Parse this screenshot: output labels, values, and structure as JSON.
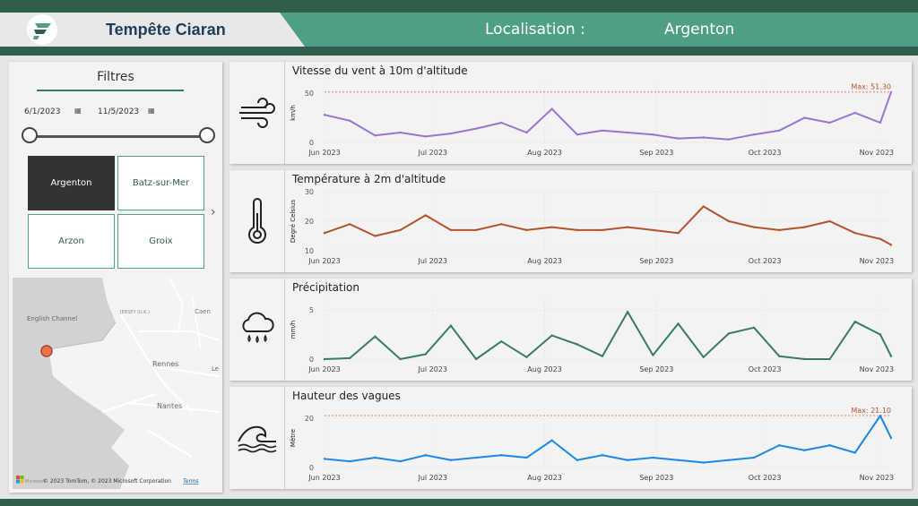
{
  "header": {
    "title": "Tempête Ciaran",
    "location_label": "Localisation :",
    "location_value": "Argenton"
  },
  "filters": {
    "title": "Filtres",
    "start_date": "6/1/2023",
    "end_date": "11/5/2023",
    "slider_range": [
      0,
      1
    ],
    "tiles": [
      "Argenton",
      "Batz-sur-Mer",
      "Arzon",
      "Groix"
    ],
    "selected_tile": "Argenton"
  },
  "map": {
    "labels": [
      "English Channel",
      "JERSEY (U.K.)",
      "Caen",
      "Rennes",
      "Le",
      "Nantes"
    ],
    "attribution": "© 2023 TomTom, © 2023 Microsoft Corporation",
    "terms": "Terms",
    "brand": "Microsoft"
  },
  "chart_data": [
    {
      "type": "line",
      "title": "Vitesse du vent à 10m d'altitude",
      "ylabel": "km/h",
      "ylim": [
        0,
        60
      ],
      "yticks": [
        0,
        50
      ],
      "xticks": [
        "Jun 2023",
        "Jul 2023",
        "Aug 2023",
        "Sep 2023",
        "Oct 2023",
        "Nov 2023"
      ],
      "color": "#9a74d1",
      "max_label": "Max: 51.30",
      "max_value": 51.3,
      "x": [
        "2023-06-01",
        "2023-06-08",
        "2023-06-15",
        "2023-06-22",
        "2023-06-29",
        "2023-07-06",
        "2023-07-13",
        "2023-07-20",
        "2023-07-27",
        "2023-08-03",
        "2023-08-10",
        "2023-08-17",
        "2023-08-24",
        "2023-08-31",
        "2023-09-07",
        "2023-09-14",
        "2023-09-21",
        "2023-09-28",
        "2023-10-05",
        "2023-10-12",
        "2023-10-19",
        "2023-10-26",
        "2023-11-02",
        "2023-11-05"
      ],
      "values": [
        28,
        22,
        7,
        10,
        6,
        9,
        14,
        20,
        10,
        34,
        8,
        12,
        10,
        8,
        4,
        5,
        3,
        8,
        12,
        25,
        20,
        30,
        20,
        51
      ]
    },
    {
      "type": "line",
      "title": "Température à 2m d'altitude",
      "ylabel": "Degré Celsius",
      "ylim": [
        10,
        30
      ],
      "yticks": [
        10,
        20,
        30
      ],
      "xticks": [
        "Jun 2023",
        "Jul 2023",
        "Aug 2023",
        "Sep 2023",
        "Oct 2023",
        "Nov 2023"
      ],
      "color": "#b4532a",
      "x": [
        "2023-06-01",
        "2023-06-08",
        "2023-06-15",
        "2023-06-22",
        "2023-06-29",
        "2023-07-06",
        "2023-07-13",
        "2023-07-20",
        "2023-07-27",
        "2023-08-03",
        "2023-08-10",
        "2023-08-17",
        "2023-08-24",
        "2023-08-31",
        "2023-09-07",
        "2023-09-14",
        "2023-09-21",
        "2023-09-28",
        "2023-10-05",
        "2023-10-12",
        "2023-10-19",
        "2023-10-26",
        "2023-11-02",
        "2023-11-05"
      ],
      "values": [
        16,
        19,
        15,
        17,
        22,
        17,
        17,
        19,
        17,
        18,
        17,
        17,
        18,
        17,
        16,
        25,
        20,
        18,
        17,
        18,
        20,
        16,
        14,
        12
      ]
    },
    {
      "type": "line",
      "title": "Précipitation",
      "ylabel": "mm/h",
      "ylim": [
        0,
        6
      ],
      "yticks": [
        0,
        5
      ],
      "xticks": [
        "Jun 2023",
        "Jul 2023",
        "Aug 2023",
        "Sep 2023",
        "Oct 2023",
        "Nov 2023"
      ],
      "color": "#3a7a63",
      "x": [
        "2023-06-01",
        "2023-06-08",
        "2023-06-15",
        "2023-06-22",
        "2023-06-29",
        "2023-07-06",
        "2023-07-13",
        "2023-07-20",
        "2023-07-27",
        "2023-08-03",
        "2023-08-10",
        "2023-08-17",
        "2023-08-24",
        "2023-08-31",
        "2023-09-07",
        "2023-09-14",
        "2023-09-21",
        "2023-09-28",
        "2023-10-05",
        "2023-10-12",
        "2023-10-19",
        "2023-10-26",
        "2023-11-02",
        "2023-11-05"
      ],
      "values": [
        0,
        0.1,
        2.3,
        0,
        0.5,
        3.4,
        0,
        1.8,
        0.2,
        2.4,
        1.5,
        0.3,
        4.8,
        0.4,
        3.6,
        0.2,
        2.6,
        3.2,
        0.3,
        0,
        0,
        3.8,
        2.5,
        0.3
      ]
    },
    {
      "type": "line",
      "title": "Hauteur des vagues",
      "ylabel": "Mètre",
      "ylim": [
        0,
        24
      ],
      "yticks": [
        0,
        20
      ],
      "xticks": [
        "Jun 2023",
        "Jul 2023",
        "Aug 2023",
        "Sep 2023",
        "Oct 2023",
        "Nov 2023"
      ],
      "color": "#1e88e5",
      "max_label": "Max: 21.10",
      "max_value": 21.1,
      "x": [
        "2023-06-01",
        "2023-06-08",
        "2023-06-15",
        "2023-06-22",
        "2023-06-29",
        "2023-07-06",
        "2023-07-13",
        "2023-07-20",
        "2023-07-27",
        "2023-08-03",
        "2023-08-10",
        "2023-08-17",
        "2023-08-24",
        "2023-08-31",
        "2023-09-07",
        "2023-09-14",
        "2023-09-21",
        "2023-09-28",
        "2023-10-05",
        "2023-10-12",
        "2023-10-19",
        "2023-10-26",
        "2023-11-02",
        "2023-11-05"
      ],
      "values": [
        3.5,
        2.5,
        4,
        2.5,
        5,
        3,
        4,
        5,
        4,
        11,
        3,
        5,
        3,
        4,
        3,
        2,
        3,
        4,
        9,
        7,
        9,
        6,
        21,
        12
      ]
    }
  ]
}
